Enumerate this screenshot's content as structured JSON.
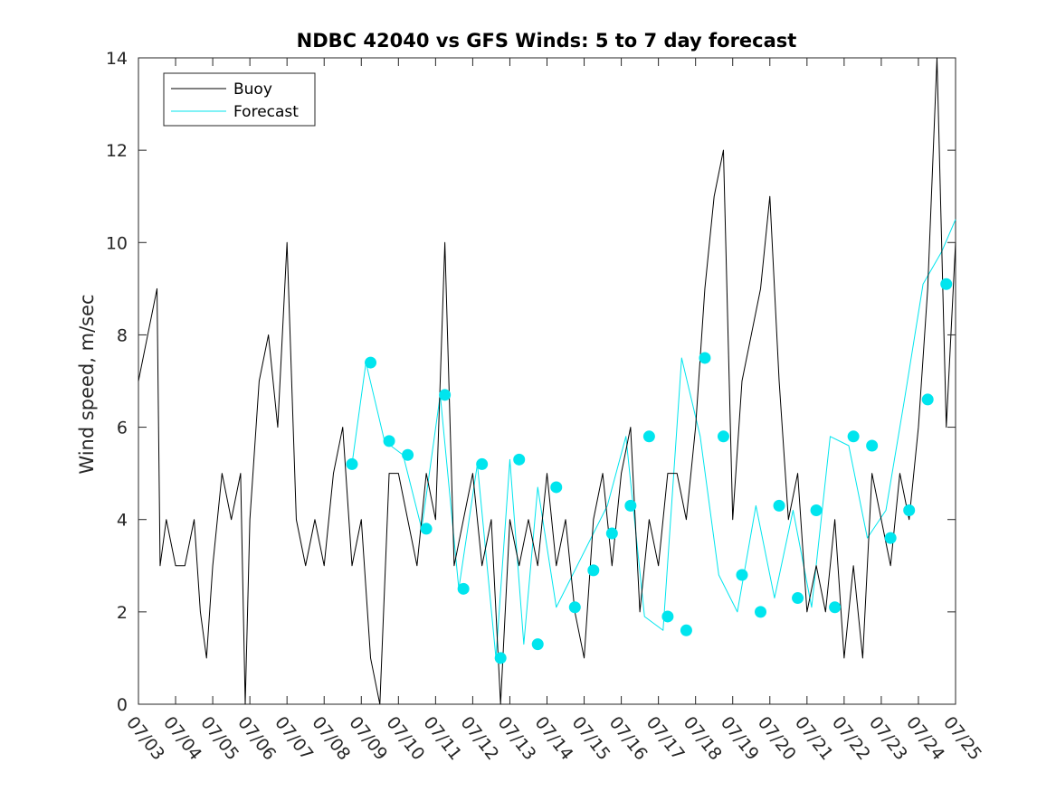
{
  "chart_data": {
    "type": "line",
    "title": "NDBC 42040 vs GFS Winds: 5 to 7 day forecast",
    "xlabel": "",
    "ylabel": "Wind speed, m/sec",
    "xlim": [
      "07/03",
      "07/25"
    ],
    "ylim": [
      0,
      14
    ],
    "y_ticks": [
      "0",
      "2",
      "4",
      "6",
      "8",
      "10",
      "12",
      "14"
    ],
    "x_ticks": [
      "07/03",
      "07/04",
      "07/05",
      "07/06",
      "07/07",
      "07/08",
      "07/09",
      "07/10",
      "07/11",
      "07/12",
      "07/13",
      "07/14",
      "07/15",
      "07/16",
      "07/17",
      "07/18",
      "07/19",
      "07/20",
      "07/21",
      "07/22",
      "07/23",
      "07/24",
      "07/25"
    ],
    "grid": false,
    "legend": {
      "position": "top-left",
      "entries": [
        "Buoy",
        "Forecast"
      ]
    },
    "colors": {
      "buoy": "#000000",
      "forecast": "#00e5ee",
      "markers": "#00e5ee"
    },
    "series": [
      {
        "name": "Buoy",
        "x": [
          "07/03 00:00",
          "07/03 06:00",
          "07/03 12:00",
          "07/03 14:00",
          "07/03 18:00",
          "07/04 00:00",
          "07/04 06:00",
          "07/04 12:00",
          "07/04 16:00",
          "07/04 20:00",
          "07/05 00:00",
          "07/05 06:00",
          "07/05 12:00",
          "07/05 18:00",
          "07/05 21:00",
          "07/06 00:00",
          "07/06 06:00",
          "07/06 12:00",
          "07/06 18:00",
          "07/07 00:00",
          "07/07 06:00",
          "07/07 12:00",
          "07/07 18:00",
          "07/08 00:00",
          "07/08 06:00",
          "07/08 12:00",
          "07/08 18:00",
          "07/09 00:00",
          "07/09 06:00",
          "07/09 12:00",
          "07/09 18:00",
          "07/10 00:00",
          "07/10 06:00",
          "07/10 12:00",
          "07/10 18:00",
          "07/11 00:00",
          "07/11 06:00",
          "07/11 12:00",
          "07/11 18:00",
          "07/12 00:00",
          "07/12 06:00",
          "07/12 12:00",
          "07/12 18:00",
          "07/13 00:00",
          "07/13 06:00",
          "07/13 12:00",
          "07/13 18:00",
          "07/14 00:00",
          "07/14 06:00",
          "07/14 12:00",
          "07/14 18:00",
          "07/15 00:00",
          "07/15 06:00",
          "07/15 12:00",
          "07/15 18:00",
          "07/16 00:00",
          "07/16 06:00",
          "07/16 12:00",
          "07/16 18:00",
          "07/17 00:00",
          "07/17 06:00",
          "07/17 12:00",
          "07/17 18:00",
          "07/18 00:00",
          "07/18 06:00",
          "07/18 12:00",
          "07/18 18:00",
          "07/19 00:00",
          "07/19 06:00",
          "07/19 12:00",
          "07/19 18:00",
          "07/20 00:00",
          "07/20 06:00",
          "07/20 12:00",
          "07/20 18:00",
          "07/21 00:00",
          "07/21 06:00",
          "07/21 12:00",
          "07/21 18:00",
          "07/22 00:00",
          "07/22 06:00",
          "07/22 12:00",
          "07/22 18:00",
          "07/23 00:00",
          "07/23 06:00",
          "07/23 12:00",
          "07/23 18:00",
          "07/24 00:00",
          "07/24 06:00",
          "07/24 12:00",
          "07/24 18:00",
          "07/25 00:00"
        ],
        "values": [
          7,
          8,
          9,
          3,
          4,
          3,
          3,
          4,
          2,
          1,
          3,
          5,
          4,
          5,
          0,
          4,
          7,
          8,
          6,
          10,
          4,
          3,
          4,
          3,
          5,
          6,
          3,
          4,
          1,
          0,
          5,
          5,
          4,
          3,
          5,
          4,
          10,
          3,
          4,
          5,
          3,
          4,
          0,
          4,
          3,
          4,
          3,
          5,
          3,
          4,
          2,
          1,
          4,
          5,
          3,
          5,
          6,
          2,
          4,
          3,
          5,
          5,
          4,
          6,
          9,
          11,
          12,
          4,
          7,
          8,
          9,
          11,
          7,
          4,
          5,
          2,
          3,
          2,
          4,
          1,
          3,
          1,
          5,
          4,
          3,
          5,
          4,
          6,
          9,
          14,
          6,
          10
        ]
      },
      {
        "name": "Forecast",
        "x": [
          "07/08 18:00",
          "07/09 03:00",
          "07/09 15:00",
          "07/10 03:00",
          "07/10 15:00",
          "07/11 03:00",
          "07/11 15:00",
          "07/12 03:00",
          "07/12 15:00",
          "07/13 00:00",
          "07/13 09:00",
          "07/13 18:00",
          "07/14 06:00",
          "07/14 18:00",
          "07/15 06:00",
          "07/15 15:00",
          "07/16 03:00",
          "07/16 15:00",
          "07/17 03:00",
          "07/17 15:00",
          "07/18 03:00",
          "07/18 15:00",
          "07/19 03:00",
          "07/19 15:00",
          "07/20 03:00",
          "07/20 15:00",
          "07/21 03:00",
          "07/21 15:00",
          "07/22 03:00",
          "07/22 15:00",
          "07/23 03:00",
          "07/23 15:00",
          "07/24 03:00",
          "07/24 15:00",
          "07/25 00:00"
        ],
        "values": [
          5.2,
          7.4,
          5.7,
          5.4,
          3.8,
          6.7,
          2.5,
          5.2,
          1.0,
          5.3,
          1.3,
          4.7,
          2.1,
          2.9,
          3.7,
          4.3,
          5.8,
          1.9,
          1.6,
          7.5,
          5.8,
          2.8,
          2.0,
          4.3,
          2.3,
          4.2,
          2.1,
          5.8,
          5.6,
          3.6,
          4.2,
          6.6,
          9.1,
          9.8,
          10.5
        ]
      }
    ],
    "markers": {
      "name": "Forecast daily means",
      "x": [
        "07/08 18:00",
        "07/09 06:00",
        "07/09 18:00",
        "07/10 06:00",
        "07/10 18:00",
        "07/11 06:00",
        "07/11 18:00",
        "07/12 06:00",
        "07/12 18:00",
        "07/13 06:00",
        "07/13 18:00",
        "07/14 06:00",
        "07/14 18:00",
        "07/15 06:00",
        "07/15 18:00",
        "07/16 06:00",
        "07/16 18:00",
        "07/17 06:00",
        "07/17 18:00",
        "07/18 06:00",
        "07/18 18:00",
        "07/19 06:00",
        "07/19 18:00",
        "07/20 06:00",
        "07/20 18:00",
        "07/21 06:00",
        "07/21 18:00",
        "07/22 06:00",
        "07/22 18:00",
        "07/23 06:00",
        "07/23 18:00",
        "07/24 06:00",
        "07/24 18:00"
      ],
      "values": [
        5.2,
        7.4,
        5.7,
        5.4,
        3.8,
        6.7,
        2.5,
        5.2,
        1.0,
        5.3,
        1.3,
        4.7,
        2.1,
        2.9,
        3.7,
        4.3,
        5.8,
        1.9,
        1.6,
        7.5,
        5.8,
        2.8,
        2.0,
        4.3,
        2.3,
        4.2,
        2.1,
        5.8,
        5.6,
        3.6,
        4.2,
        6.6,
        9.1
      ]
    }
  }
}
